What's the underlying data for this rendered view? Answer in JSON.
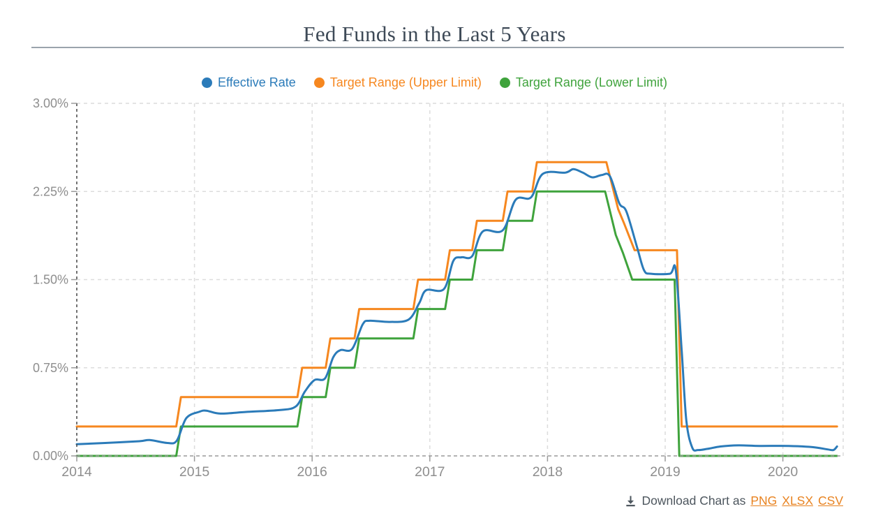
{
  "page": {
    "title": "Fed Funds in the Last 5 Years"
  },
  "footer": {
    "prefix": "Download Chart as",
    "links": [
      "PNG",
      "XLSX",
      "CSV"
    ],
    "link_color": "#e8821f",
    "icon": "download-icon"
  },
  "colors": {
    "title": "#3e4a57",
    "axis_text": "#8e8e8e",
    "gridline": "#dcdcdc",
    "baseline": "#9a9a9a",
    "y_axis_line": "#4f4f4f",
    "tick": "#9a9a9a",
    "separator": "#9aa4ac"
  },
  "chart_data": {
    "type": "line",
    "title": "Fed Funds in the Last 5 Years",
    "legend_position": "top",
    "grid": true,
    "x_axis": {
      "ticks": [
        2014,
        2015,
        2016,
        2017,
        2018,
        2019,
        2020
      ],
      "min": 2014,
      "max": 2020.52
    },
    "y_axis": {
      "unit": "%",
      "min": 0,
      "max": 3,
      "ticks": [
        {
          "value": 3.0,
          "label": "3.00%"
        },
        {
          "value": 2.25,
          "label": "2.25%"
        },
        {
          "value": 1.5,
          "label": "1.50%"
        },
        {
          "value": 0.75,
          "label": "0.75%"
        },
        {
          "value": 0.0,
          "label": "0.00%"
        }
      ]
    },
    "series": [
      {
        "name": "Effective Rate",
        "color": "#2b7bb9",
        "smooth": true,
        "points": [
          [
            2014.0,
            0.1
          ],
          [
            2014.24,
            0.11
          ],
          [
            2014.53,
            0.125
          ],
          [
            2014.62,
            0.135
          ],
          [
            2014.77,
            0.11
          ],
          [
            2014.85,
            0.13
          ],
          [
            2014.93,
            0.32
          ],
          [
            2015.04,
            0.375
          ],
          [
            2015.1,
            0.385
          ],
          [
            2015.22,
            0.36
          ],
          [
            2015.45,
            0.375
          ],
          [
            2015.72,
            0.39
          ],
          [
            2015.86,
            0.42
          ],
          [
            2015.94,
            0.55
          ],
          [
            2016.02,
            0.645
          ],
          [
            2016.11,
            0.66
          ],
          [
            2016.18,
            0.84
          ],
          [
            2016.24,
            0.9
          ],
          [
            2016.34,
            0.91
          ],
          [
            2016.43,
            1.12
          ],
          [
            2016.49,
            1.15
          ],
          [
            2016.66,
            1.14
          ],
          [
            2016.82,
            1.16
          ],
          [
            2016.91,
            1.3
          ],
          [
            2016.97,
            1.41
          ],
          [
            2017.12,
            1.42
          ],
          [
            2017.2,
            1.66
          ],
          [
            2017.27,
            1.69
          ],
          [
            2017.36,
            1.7
          ],
          [
            2017.45,
            1.91
          ],
          [
            2017.62,
            1.92
          ],
          [
            2017.73,
            2.18
          ],
          [
            2017.86,
            2.2
          ],
          [
            2017.96,
            2.4
          ],
          [
            2018.15,
            2.41
          ],
          [
            2018.22,
            2.44
          ],
          [
            2018.3,
            2.41
          ],
          [
            2018.38,
            2.37
          ],
          [
            2018.46,
            2.39
          ],
          [
            2018.53,
            2.38
          ],
          [
            2018.61,
            2.15
          ],
          [
            2018.67,
            2.08
          ],
          [
            2018.76,
            1.78
          ],
          [
            2018.82,
            1.58
          ],
          [
            2018.88,
            1.55
          ],
          [
            2019.04,
            1.55
          ],
          [
            2019.09,
            1.58
          ],
          [
            2019.14,
            0.9
          ],
          [
            2019.18,
            0.3
          ],
          [
            2019.23,
            0.07
          ],
          [
            2019.28,
            0.05
          ],
          [
            2019.36,
            0.06
          ],
          [
            2019.47,
            0.08
          ],
          [
            2019.62,
            0.09
          ],
          [
            2019.8,
            0.085
          ],
          [
            2020.05,
            0.085
          ],
          [
            2020.25,
            0.075
          ],
          [
            2020.38,
            0.055
          ],
          [
            2020.43,
            0.05
          ],
          [
            2020.46,
            0.08
          ]
        ]
      },
      {
        "name": "Target Range (Upper Limit)",
        "color": "#f6871f",
        "smooth": false,
        "points": [
          [
            2014.0,
            0.25
          ],
          [
            2014.845,
            0.25
          ],
          [
            2014.885,
            0.5
          ],
          [
            2015.875,
            0.5
          ],
          [
            2015.915,
            0.75
          ],
          [
            2016.115,
            0.75
          ],
          [
            2016.155,
            1.0
          ],
          [
            2016.36,
            1.0
          ],
          [
            2016.4,
            1.25
          ],
          [
            2016.86,
            1.25
          ],
          [
            2016.9,
            1.5
          ],
          [
            2017.13,
            1.5
          ],
          [
            2017.17,
            1.75
          ],
          [
            2017.36,
            1.75
          ],
          [
            2017.4,
            2.0
          ],
          [
            2017.62,
            2.0
          ],
          [
            2017.66,
            2.25
          ],
          [
            2017.87,
            2.25
          ],
          [
            2017.91,
            2.5
          ],
          [
            2018.5,
            2.5
          ],
          [
            2018.6,
            2.1
          ],
          [
            2018.65,
            1.98
          ],
          [
            2018.74,
            1.75
          ],
          [
            2019.1,
            1.75
          ],
          [
            2019.14,
            0.25
          ],
          [
            2020.46,
            0.25
          ]
        ]
      },
      {
        "name": "Target Range (Lower Limit)",
        "color": "#3fa33c",
        "smooth": false,
        "points": [
          [
            2014.0,
            0.0
          ],
          [
            2014.845,
            0.0
          ],
          [
            2014.885,
            0.25
          ],
          [
            2015.875,
            0.25
          ],
          [
            2015.915,
            0.5
          ],
          [
            2016.115,
            0.5
          ],
          [
            2016.155,
            0.75
          ],
          [
            2016.36,
            0.75
          ],
          [
            2016.4,
            1.0
          ],
          [
            2016.86,
            1.0
          ],
          [
            2016.9,
            1.25
          ],
          [
            2017.13,
            1.25
          ],
          [
            2017.17,
            1.5
          ],
          [
            2017.36,
            1.5
          ],
          [
            2017.4,
            1.75
          ],
          [
            2017.62,
            1.75
          ],
          [
            2017.66,
            2.0
          ],
          [
            2017.87,
            2.0
          ],
          [
            2017.91,
            2.25
          ],
          [
            2018.49,
            2.25
          ],
          [
            2018.58,
            1.88
          ],
          [
            2018.64,
            1.73
          ],
          [
            2018.72,
            1.5
          ],
          [
            2019.08,
            1.5
          ],
          [
            2019.12,
            0.0
          ],
          [
            2020.46,
            0.0
          ]
        ]
      }
    ]
  }
}
